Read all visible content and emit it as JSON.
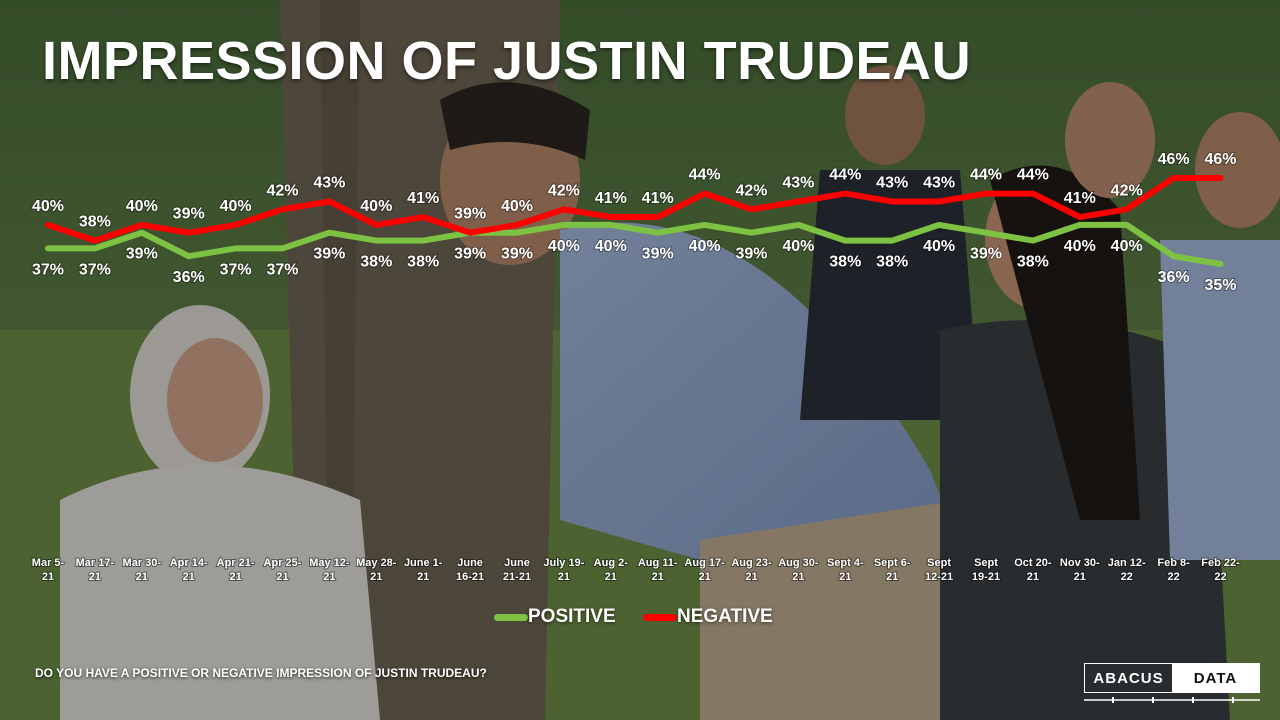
{
  "title": "IMPRESSION OF JUSTIN TRUDEAU",
  "question": "DO YOU HAVE A POSITIVE OR NEGATIVE IMPRESSION OF JUSTIN TRUDEAU?",
  "logo": {
    "left": "ABACUS",
    "right": "DATA"
  },
  "colors": {
    "positive": "#7dc242",
    "negative": "#ff0000",
    "text": "#ffffff"
  },
  "chart_data": {
    "type": "line",
    "title": "IMPRESSION OF JUSTIN TRUDEAU",
    "categories": [
      [
        "Mar 5-",
        "21"
      ],
      [
        "Mar 17-",
        "21"
      ],
      [
        "Mar 30-",
        "21"
      ],
      [
        "Apr 14-",
        "21"
      ],
      [
        "Apr 21-",
        "21"
      ],
      [
        "Apr 25-",
        "21"
      ],
      [
        "May 12-",
        "21"
      ],
      [
        "May 28-",
        "21"
      ],
      [
        "June 1-",
        "21"
      ],
      [
        "June",
        "16-21"
      ],
      [
        "June",
        "21-21"
      ],
      [
        "July 19-",
        "21"
      ],
      [
        "Aug 2-",
        "21"
      ],
      [
        "Aug 11-",
        "21"
      ],
      [
        "Aug 17-",
        "21"
      ],
      [
        "Aug 23-",
        "21"
      ],
      [
        "Aug 30-",
        "21"
      ],
      [
        "Sept 4-",
        "21"
      ],
      [
        "Sept 6-",
        "21"
      ],
      [
        "Sept",
        "12-21"
      ],
      [
        "Sept",
        "19-21"
      ],
      [
        "Oct 20-",
        "21"
      ],
      [
        "Nov 30-",
        "21"
      ],
      [
        "Jan 12-",
        "22"
      ],
      [
        "Feb 8-",
        "22"
      ],
      [
        "Feb 22-",
        "22"
      ]
    ],
    "series": [
      {
        "name": "POSITIVE",
        "color": "#7dc242",
        "values": [
          37,
          37,
          39,
          36,
          37,
          37,
          39,
          38,
          38,
          39,
          39,
          40,
          40,
          39,
          40,
          39,
          40,
          38,
          38,
          40,
          39,
          38,
          40,
          40,
          36,
          35
        ],
        "labels": [
          "37%",
          "37%",
          "39%",
          "36%",
          "37%",
          "37%",
          "39%",
          "38%",
          "38%",
          "39%",
          "39%",
          "40%",
          "40%",
          "39%",
          "40%",
          "39%",
          "40%",
          "38%",
          "38%",
          "40%",
          "39%",
          "38%",
          "40%",
          "40%",
          "36%",
          "35%"
        ]
      },
      {
        "name": "NEGATIVE",
        "color": "#ff0000",
        "values": [
          40,
          38,
          40,
          39,
          40,
          42,
          43,
          40,
          41,
          39,
          40,
          42,
          41,
          41,
          44,
          42,
          43,
          44,
          43,
          43,
          44,
          44,
          41,
          42,
          46,
          46
        ],
        "labels": [
          "40%",
          "38%",
          "40%",
          "39%",
          "40%",
          "42%",
          "43%",
          "40%",
          "41%",
          "39%",
          "40%",
          "42%",
          "41%",
          "41%",
          "44%",
          "42%",
          "43%",
          "44%",
          "43%",
          "43%",
          "44%",
          "44%",
          "41%",
          "42%",
          "46%",
          "46%"
        ]
      }
    ],
    "legend": [
      "POSITIVE",
      "NEGATIVE"
    ],
    "legend_position": "bottom-center",
    "grid": false
  }
}
